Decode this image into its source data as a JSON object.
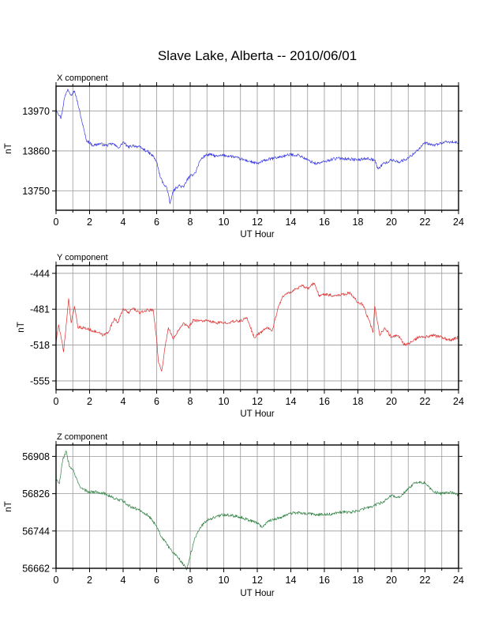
{
  "page_title": "Slave Lake, Alberta -- 2010/06/01",
  "chart_data": [
    {
      "type": "line",
      "title": "X component",
      "xlabel": "UT Hour",
      "ylabel": "nT",
      "xlim": [
        0,
        24
      ],
      "ylim": [
        13697,
        14038
      ],
      "xticks": [
        "0",
        "2",
        "4",
        "6",
        "8",
        "10",
        "12",
        "14",
        "16",
        "18",
        "20",
        "22",
        "24"
      ],
      "yticks": [
        "13750",
        "13860",
        "13970"
      ],
      "ytick_values": [
        13750,
        13860,
        13970
      ],
      "grid": true,
      "color": "#3a3ae8",
      "series": [
        {
          "x": [
            0,
            0.3,
            0.5,
            0.7,
            0.9,
            1.1,
            1.3,
            1.5,
            1.8,
            2.2,
            2.6,
            3.0,
            3.4,
            3.6,
            3.8,
            4.0,
            4.3,
            4.6,
            5.0,
            5.4,
            5.8,
            6.0,
            6.2,
            6.4,
            6.6,
            6.8,
            6.9,
            7.0,
            7.3,
            7.6,
            7.8,
            8.0,
            8.3,
            8.6,
            8.9,
            9.2,
            9.6,
            10.0,
            10.5,
            11.0,
            11.5,
            12.0,
            12.5,
            13.0,
            13.5,
            14.0,
            14.5,
            15.0,
            15.5,
            16.0,
            16.5,
            17.0,
            17.5,
            18.0,
            18.5,
            19.0,
            19.2,
            19.5,
            19.8,
            20.0,
            20.5,
            21.0,
            21.5,
            22.0,
            22.5,
            23.0,
            23.5,
            24.0
          ],
          "y": [
            13975,
            13950,
            14005,
            14030,
            14015,
            14025,
            13990,
            13950,
            13890,
            13875,
            13880,
            13875,
            13880,
            13872,
            13870,
            13885,
            13870,
            13875,
            13870,
            13860,
            13845,
            13830,
            13790,
            13770,
            13760,
            13715,
            13735,
            13750,
            13765,
            13760,
            13780,
            13790,
            13800,
            13835,
            13848,
            13850,
            13845,
            13848,
            13845,
            13838,
            13832,
            13825,
            13835,
            13840,
            13845,
            13850,
            13848,
            13835,
            13825,
            13830,
            13838,
            13840,
            13838,
            13835,
            13840,
            13835,
            13810,
            13825,
            13830,
            13835,
            13830,
            13840,
            13860,
            13882,
            13875,
            13882,
            13885,
            13882
          ]
        }
      ]
    },
    {
      "type": "line",
      "title": "Y component",
      "xlabel": "UT Hour",
      "ylabel": "nT",
      "xlim": [
        0,
        24
      ],
      "ylim": [
        -564,
        -436
      ],
      "xticks": [
        "0",
        "2",
        "4",
        "6",
        "8",
        "10",
        "12",
        "14",
        "16",
        "18",
        "20",
        "22",
        "24"
      ],
      "yticks": [
        "-555",
        "-518",
        "-481",
        "-444"
      ],
      "ytick_values": [
        -555,
        -518,
        -481,
        -444
      ],
      "grid": true,
      "color": "#e03030",
      "series": [
        {
          "x": [
            0,
            0.15,
            0.3,
            0.45,
            0.6,
            0.75,
            0.9,
            1.1,
            1.3,
            1.6,
            2.0,
            2.5,
            2.8,
            3.1,
            3.5,
            3.7,
            4.0,
            4.3,
            4.6,
            5.0,
            5.4,
            5.8,
            6.0,
            6.1,
            6.3,
            6.5,
            6.7,
            6.9,
            7.0,
            7.3,
            7.6,
            7.9,
            8.2,
            8.6,
            9.0,
            9.5,
            10.0,
            10.5,
            11.0,
            11.4,
            11.8,
            12.2,
            12.6,
            12.9,
            13.2,
            13.5,
            13.9,
            14.3,
            14.7,
            15.0,
            15.4,
            15.7,
            16.0,
            16.5,
            17.0,
            17.5,
            18.0,
            18.3,
            18.6,
            18.9,
            19.0,
            19.3,
            19.6,
            20.0,
            20.4,
            20.8,
            21.2,
            21.6,
            22.0,
            22.5,
            23.0,
            23.5,
            24.0
          ],
          "y": [
            -515,
            -497,
            -510,
            -525,
            -498,
            -470,
            -495,
            -478,
            -500,
            -500,
            -502,
            -505,
            -508,
            -505,
            -490,
            -495,
            -480,
            -485,
            -480,
            -485,
            -482,
            -482,
            -512,
            -535,
            -545,
            -520,
            -500,
            -508,
            -512,
            -502,
            -495,
            -500,
            -492,
            -493,
            -493,
            -495,
            -495,
            -494,
            -493,
            -490,
            -510,
            -505,
            -500,
            -503,
            -482,
            -468,
            -464,
            -460,
            -457,
            -460,
            -454,
            -468,
            -465,
            -467,
            -466,
            -464,
            -474,
            -476,
            -490,
            -505,
            -478,
            -508,
            -500,
            -510,
            -508,
            -518,
            -515,
            -510,
            -510,
            -508,
            -510,
            -513,
            -510
          ]
        }
      ]
    },
    {
      "type": "line",
      "title": "Z component",
      "xlabel": "UT Hour",
      "ylabel": "nT",
      "xlim": [
        0,
        24
      ],
      "ylim": [
        56662,
        56933
      ],
      "xticks": [
        "0",
        "2",
        "4",
        "6",
        "8",
        "10",
        "12",
        "14",
        "16",
        "18",
        "20",
        "22",
        "24"
      ],
      "yticks": [
        "56662",
        "56744",
        "56826",
        "56908"
      ],
      "ytick_values": [
        56662,
        56744,
        56826,
        56908
      ],
      "grid": true,
      "color": "#2e8040",
      "series": [
        {
          "x": [
            0,
            0.2,
            0.4,
            0.6,
            0.8,
            1.0,
            1.3,
            1.6,
            2.0,
            2.5,
            3.0,
            3.5,
            4.0,
            4.3,
            4.6,
            5.0,
            5.5,
            6.0,
            6.3,
            6.6,
            6.9,
            7.2,
            7.5,
            7.8,
            8.0,
            8.3,
            8.6,
            9.0,
            9.5,
            10.0,
            10.5,
            11.0,
            11.5,
            12.0,
            12.3,
            12.6,
            13.0,
            13.5,
            14.0,
            14.5,
            15.0,
            15.5,
            16.0,
            16.5,
            17.0,
            17.5,
            18.0,
            18.5,
            19.0,
            19.5,
            20.0,
            20.5,
            21.0,
            21.5,
            22.0,
            22.5,
            23.0,
            23.5,
            24.0
          ],
          "y": [
            56858,
            56848,
            56900,
            56920,
            56885,
            56880,
            56850,
            56835,
            56830,
            56830,
            56825,
            56815,
            56810,
            56800,
            56795,
            56790,
            56778,
            56755,
            56730,
            56715,
            56700,
            56690,
            56675,
            56660,
            56690,
            56730,
            56752,
            56768,
            56775,
            56780,
            56778,
            56775,
            56768,
            56762,
            56752,
            56765,
            56770,
            56775,
            56783,
            56784,
            56782,
            56780,
            56780,
            56781,
            56786,
            56785,
            56788,
            56795,
            56800,
            56808,
            56822,
            56818,
            56838,
            56852,
            56850,
            56830,
            56826,
            56830,
            56823
          ]
        }
      ]
    }
  ]
}
